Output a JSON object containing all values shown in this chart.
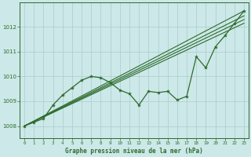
{
  "title": "Graphe pression niveau de la mer (hPa)",
  "bg_color": "#cce8e8",
  "grid_color": "#aacccc",
  "line_color": "#2d6b2d",
  "xlim": [
    -0.5,
    23.5
  ],
  "ylim": [
    1007.5,
    1013.0
  ],
  "xticks": [
    0,
    1,
    2,
    3,
    4,
    5,
    6,
    7,
    8,
    9,
    10,
    11,
    12,
    13,
    14,
    15,
    16,
    17,
    18,
    19,
    20,
    21,
    22,
    23
  ],
  "yticks": [
    1008,
    1009,
    1010,
    1011,
    1012
  ],
  "straight_lines": [
    {
      "x0": 0,
      "y0": 1008.0,
      "x1": 23,
      "y1": 1012.65
    },
    {
      "x0": 0,
      "y0": 1008.0,
      "x1": 23,
      "y1": 1012.45
    },
    {
      "x0": 0,
      "y0": 1008.0,
      "x1": 23,
      "y1": 1012.3
    },
    {
      "x0": 0,
      "y0": 1008.0,
      "x1": 23,
      "y1": 1012.15
    }
  ],
  "zigzag_x": [
    0,
    1,
    2,
    3,
    4,
    5,
    6,
    7,
    8,
    9,
    10,
    11,
    12,
    13,
    14,
    15,
    16,
    17,
    18,
    19,
    20,
    21,
    22,
    23
  ],
  "zigzag_y": [
    1008.0,
    1008.15,
    1008.3,
    1008.85,
    1009.25,
    1009.55,
    1009.85,
    1010.0,
    1009.95,
    1009.75,
    1009.45,
    1009.3,
    1008.85,
    1009.4,
    1009.35,
    1009.4,
    1009.05,
    1009.2,
    1010.8,
    1010.35,
    1011.2,
    1011.65,
    1012.15,
    1012.65
  ]
}
